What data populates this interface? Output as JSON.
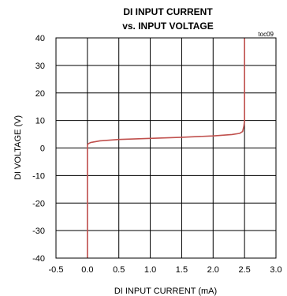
{
  "chart_data": {
    "type": "line",
    "title": [
      "DI INPUT CURRENT",
      "vs. INPUT VOLTAGE"
    ],
    "tag": "toc09",
    "xlabel": "DI INPUT CURRENT (mA)",
    "ylabel": "DI VOLTAGE (V)",
    "xlim": [
      -0.5,
      3.0
    ],
    "ylim": [
      -40,
      40
    ],
    "xticks": [
      "-0.5",
      "0.0",
      "0.5",
      "1.0",
      "1.5",
      "2.0",
      "2.5",
      "3.0"
    ],
    "yticks": [
      "40",
      "30",
      "20",
      "10",
      "0",
      "-10",
      "-20",
      "-30",
      "-40"
    ],
    "grid": true,
    "series_color": "#c0504d",
    "series": [
      {
        "x": [
          0.0,
          0.0,
          0.0,
          0.01,
          0.05,
          0.2,
          0.5,
          1.0,
          1.5,
          2.0,
          2.3,
          2.42,
          2.47,
          2.49,
          2.5,
          2.5
        ],
        "y": [
          -40,
          0,
          1.0,
          1.5,
          2.0,
          2.6,
          3.1,
          3.5,
          3.9,
          4.4,
          4.9,
          5.3,
          6.0,
          8.0,
          10,
          40
        ]
      }
    ]
  }
}
